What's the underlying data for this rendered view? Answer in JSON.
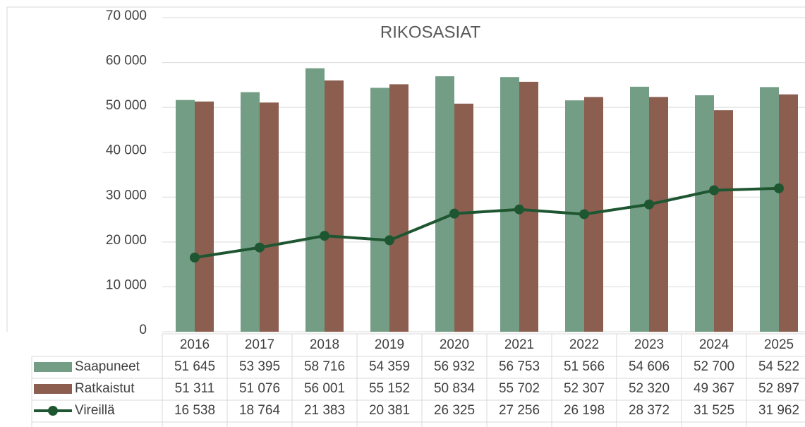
{
  "chart_data": {
    "type": "bar",
    "title": "RIKOSASIAT",
    "categories": [
      "2016",
      "2017",
      "2018",
      "2019",
      "2020",
      "2021",
      "2022",
      "2023",
      "2024",
      "2025"
    ],
    "series": [
      {
        "name": "Saapuneet",
        "type": "bar",
        "color": "#739e85",
        "values": [
          51645,
          53395,
          58716,
          54359,
          56932,
          56753,
          51566,
          54606,
          52700,
          54522
        ],
        "value_labels": [
          "51 645",
          "53 395",
          "58 716",
          "54 359",
          "56 932",
          "56 753",
          "51 566",
          "54 606",
          "52 700",
          "54 522"
        ]
      },
      {
        "name": "Ratkaistut",
        "type": "bar",
        "color": "#8b5e50",
        "values": [
          51311,
          51076,
          56001,
          55152,
          50834,
          55702,
          52307,
          52320,
          49367,
          52897
        ],
        "value_labels": [
          "51 311",
          "51 076",
          "56 001",
          "55 152",
          "50 834",
          "55 702",
          "52 307",
          "52 320",
          "49 367",
          "52 897"
        ]
      },
      {
        "name": "Vireillä",
        "type": "line",
        "color": "#1e5631",
        "values": [
          16538,
          18764,
          21383,
          20381,
          26325,
          27256,
          26198,
          28372,
          31525,
          31962
        ],
        "value_labels": [
          "16 538",
          "18 764",
          "21 383",
          "20 381",
          "26 325",
          "27 256",
          "26 198",
          "28 372",
          "31 525",
          "31 962"
        ]
      }
    ],
    "ylim": [
      0,
      70000
    ],
    "yticks": [
      0,
      {
        "value": 10000,
        "label": "10 000"
      },
      {
        "value": 20000,
        "label": "20 000"
      },
      {
        "value": 30000,
        "label": "30 000"
      },
      {
        "value": 40000,
        "label": "40 000"
      },
      {
        "value": 50000,
        "label": "50 000"
      },
      {
        "value": 60000,
        "label": "60 000"
      },
      {
        "value": 70000,
        "label": "70 000"
      }
    ],
    "grid": true
  }
}
